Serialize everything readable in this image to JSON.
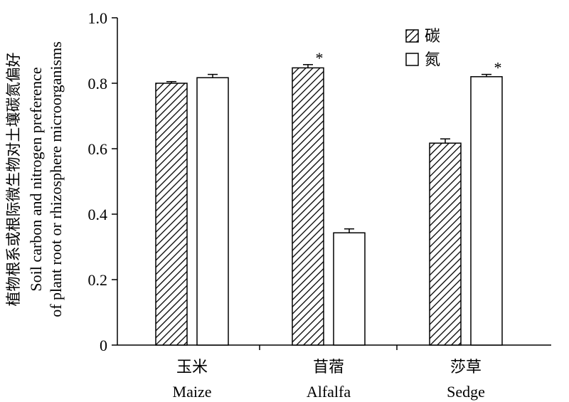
{
  "chart_data": {
    "type": "bar",
    "title": "",
    "ylabel_cn": "植物根系或根际微生物对土壤碳氮偏好",
    "ylabel_en_line1": "Soil carbon and nitrogen preference",
    "ylabel_en_line2": "of plant root or rhizosphere microorganisms",
    "ylim": [
      0,
      1.0
    ],
    "yticks": [
      "0",
      "0.2",
      "0.4",
      "0.6",
      "0.8",
      "1.0"
    ],
    "ytick_values": [
      0,
      0.2,
      0.4,
      0.6,
      0.8,
      1.0
    ],
    "categories": [
      {
        "cn": "玉米",
        "en": "Maize"
      },
      {
        "cn": "苜蓿",
        "en": "Alfalfa"
      },
      {
        "cn": "莎草",
        "en": "Sedge"
      }
    ],
    "series": [
      {
        "name": "碳",
        "fill": "hatched",
        "values": [
          0.8,
          0.847,
          0.617
        ],
        "errors": [
          0.005,
          0.01,
          0.013
        ]
      },
      {
        "name": "氮",
        "fill": "#ffffff",
        "values": [
          0.817,
          0.343,
          0.82
        ],
        "errors": [
          0.01,
          0.012,
          0.007
        ]
      }
    ],
    "significance": [
      {
        "category_index": 1,
        "series_index": 0,
        "label": "*"
      },
      {
        "category_index": 2,
        "series_index": 1,
        "label": "*"
      }
    ],
    "legend_position": "top-right",
    "grid": false
  }
}
